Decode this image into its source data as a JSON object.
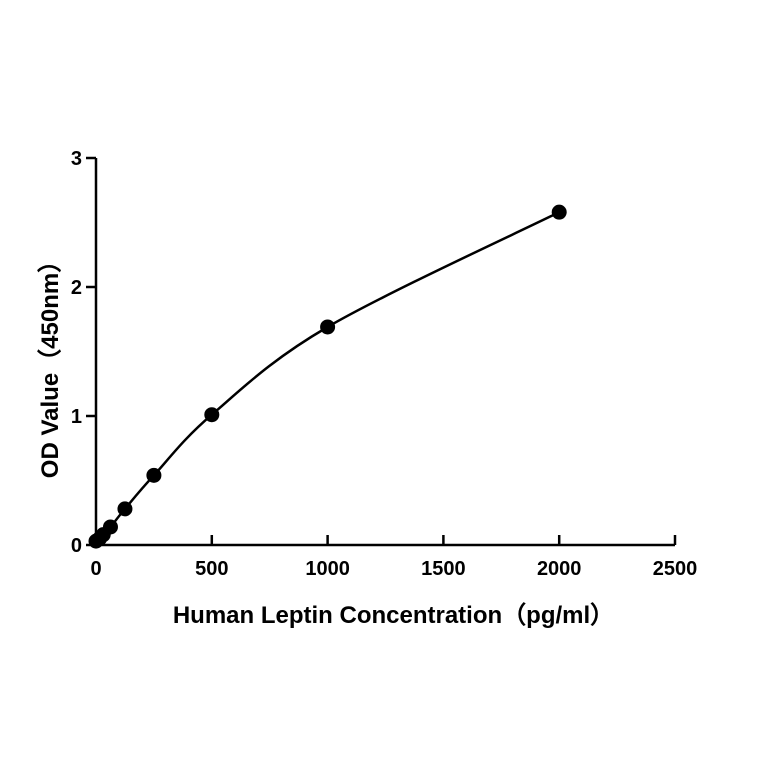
{
  "chart_data": {
    "type": "scatter",
    "title": "",
    "xlabel": "Human Leptin  Concentration（pg/ml）",
    "ylabel": "OD Value（450nm）",
    "xlim": [
      0,
      2500
    ],
    "ylim": [
      0,
      3
    ],
    "x_ticks": [
      0,
      500,
      1000,
      1500,
      2000,
      2500
    ],
    "y_ticks": [
      0,
      1,
      2,
      3
    ],
    "x_tick_labels": [
      "0",
      "500",
      "1000",
      "1500",
      "2000",
      "2500"
    ],
    "y_tick_labels": [
      "0",
      "1",
      "2",
      "3"
    ],
    "grid": false,
    "legend": "none",
    "fit_curve": true,
    "series": [
      {
        "x": [
          0,
          15.6,
          31.25,
          62.5,
          125,
          250,
          500,
          1000,
          2000
        ],
        "y": [
          0.03,
          0.05,
          0.08,
          0.14,
          0.28,
          0.54,
          1.01,
          1.69,
          2.58
        ],
        "color": "#000000"
      }
    ]
  }
}
